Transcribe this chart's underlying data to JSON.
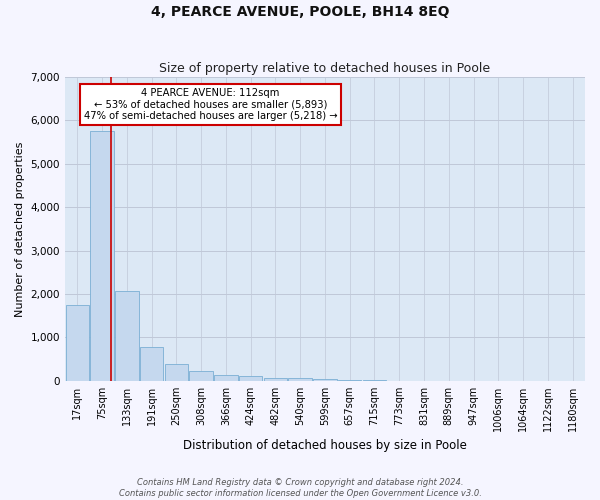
{
  "title": "4, PEARCE AVENUE, POOLE, BH14 8EQ",
  "subtitle": "Size of property relative to detached houses in Poole",
  "xlabel": "Distribution of detached houses by size in Poole",
  "ylabel": "Number of detached properties",
  "categories": [
    "17sqm",
    "75sqm",
    "133sqm",
    "191sqm",
    "250sqm",
    "308sqm",
    "366sqm",
    "424sqm",
    "482sqm",
    "540sqm",
    "599sqm",
    "657sqm",
    "715sqm",
    "773sqm",
    "831sqm",
    "889sqm",
    "947sqm",
    "1006sqm",
    "1064sqm",
    "1122sqm",
    "1180sqm"
  ],
  "values": [
    1750,
    5750,
    2080,
    790,
    390,
    220,
    130,
    100,
    70,
    55,
    50,
    30,
    10,
    5,
    3,
    2,
    1,
    1,
    1,
    1,
    1
  ],
  "bar_color": "#c5d8ee",
  "bar_edge_color": "#7aafd4",
  "vline_color": "#cc0000",
  "vline_x": 1.37,
  "annotation_text": "4 PEARCE AVENUE: 112sqm\n← 53% of detached houses are smaller (5,893)\n47% of semi-detached houses are larger (5,218) →",
  "annotation_box_color": "#ffffff",
  "annotation_box_edge": "#cc0000",
  "ylim": [
    0,
    7000
  ],
  "yticks": [
    0,
    1000,
    2000,
    3000,
    4000,
    5000,
    6000,
    7000
  ],
  "bg_color": "#dce8f5",
  "grid_color": "#c0c8d8",
  "footer_line1": "Contains HM Land Registry data © Crown copyright and database right 2024.",
  "footer_line2": "Contains public sector information licensed under the Open Government Licence v3.0."
}
